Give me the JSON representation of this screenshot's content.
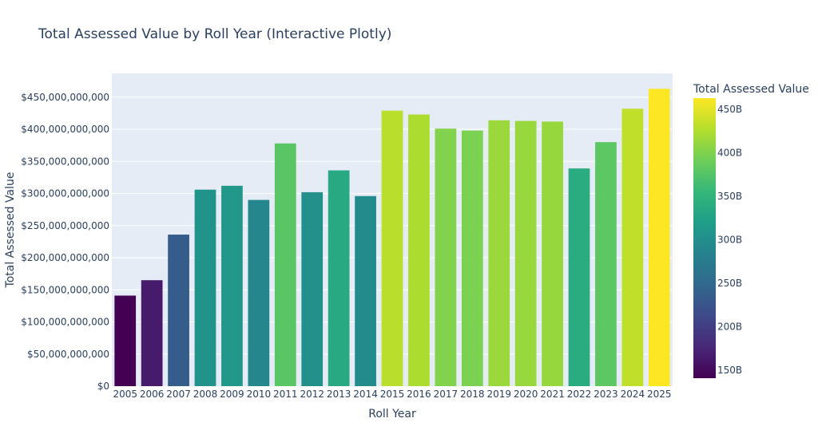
{
  "chart_data": {
    "type": "bar",
    "title": "Total Assessed Value by Roll Year (Interactive Plotly)",
    "xlabel": "Roll Year",
    "ylabel": "Total Assessed Value",
    "categories": [
      "2005",
      "2006",
      "2007",
      "2008",
      "2009",
      "2010",
      "2011",
      "2012",
      "2013",
      "2014",
      "2015",
      "2016",
      "2017",
      "2018",
      "2019",
      "2020",
      "2021",
      "2022",
      "2023",
      "2024",
      "2025"
    ],
    "values": [
      141000000000,
      165000000000,
      236000000000,
      306000000000,
      312000000000,
      290000000000,
      378000000000,
      302000000000,
      336000000000,
      296000000000,
      429000000000,
      423000000000,
      401000000000,
      398000000000,
      414000000000,
      413000000000,
      412000000000,
      339000000000,
      380000000000,
      432000000000,
      463000000000
    ],
    "ylim": [
      0,
      487000000000
    ],
    "y_ticks": [
      {
        "value": 0,
        "label": "$0"
      },
      {
        "value": 50000000000,
        "label": "$50,000,000,000"
      },
      {
        "value": 100000000000,
        "label": "$100,000,000,000"
      },
      {
        "value": 150000000000,
        "label": "$150,000,000,000"
      },
      {
        "value": 200000000000,
        "label": "$200,000,000,000"
      },
      {
        "value": 250000000000,
        "label": "$250,000,000,000"
      },
      {
        "value": 300000000000,
        "label": "$300,000,000,000"
      },
      {
        "value": 350000000000,
        "label": "$350,000,000,000"
      },
      {
        "value": 400000000000,
        "label": "$400,000,000,000"
      },
      {
        "value": 450000000000,
        "label": "$450,000,000,000"
      }
    ],
    "grid": true,
    "colorscale": "Viridis",
    "colorscale_stops": [
      "#440154",
      "#482878",
      "#3e4989",
      "#31688e",
      "#26828e",
      "#1f9e89",
      "#35b779",
      "#6ece58",
      "#b5de2b",
      "#fde725"
    ],
    "colorbar": {
      "title": "Total Assessed Value",
      "range": [
        141000000000,
        463000000000
      ],
      "ticks": [
        {
          "value": 150000000000,
          "label": "150B"
        },
        {
          "value": 200000000000,
          "label": "200B"
        },
        {
          "value": 250000000000,
          "label": "250B"
        },
        {
          "value": 300000000000,
          "label": "300B"
        },
        {
          "value": 350000000000,
          "label": "350B"
        },
        {
          "value": 400000000000,
          "label": "400B"
        },
        {
          "value": 450000000000,
          "label": "450B"
        }
      ]
    },
    "colors": {
      "plot_background": "#e5ecf6",
      "gridline": "#ffffff",
      "text": "#2a3f5f"
    }
  }
}
